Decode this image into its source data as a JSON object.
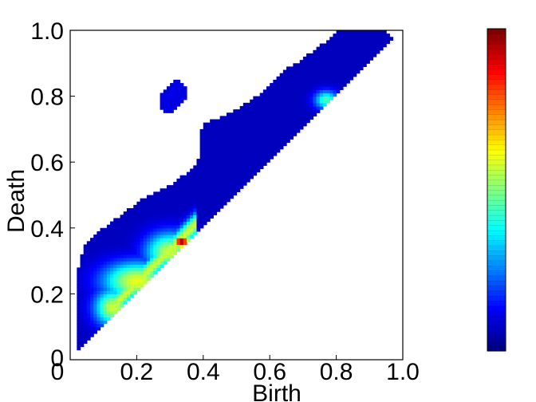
{
  "chart_data": {
    "type": "heatmap",
    "title": "",
    "xlabel": "Birth",
    "ylabel": "Death",
    "xlim": [
      0,
      1.0
    ],
    "ylim": [
      0,
      1.0
    ],
    "x_ticks": [
      "0",
      "0.2",
      "0.4",
      "0.6",
      "0.8",
      "1.0"
    ],
    "y_ticks": [
      "0",
      "0.2",
      "0.4",
      "0.6",
      "0.8",
      "1.0"
    ],
    "x_tick_values": [
      0,
      0.2,
      0.4,
      0.6,
      0.8,
      1.0
    ],
    "y_tick_values": [
      0,
      0.2,
      0.4,
      0.6,
      0.8,
      1.0
    ],
    "colormap": "jet",
    "colorbar": true,
    "grid": false,
    "support_region": [
      [
        0.02,
        0.03
      ],
      [
        0.02,
        0.26
      ],
      [
        0.03,
        0.3
      ],
      [
        0.04,
        0.34
      ],
      [
        0.06,
        0.37
      ],
      [
        0.1,
        0.4
      ],
      [
        0.14,
        0.43
      ],
      [
        0.18,
        0.46
      ],
      [
        0.22,
        0.49
      ],
      [
        0.26,
        0.51
      ],
      [
        0.3,
        0.53
      ],
      [
        0.34,
        0.56
      ],
      [
        0.38,
        0.59
      ],
      [
        0.39,
        0.62
      ],
      [
        0.39,
        0.67
      ],
      [
        0.4,
        0.72
      ],
      [
        0.44,
        0.73
      ],
      [
        0.5,
        0.76
      ],
      [
        0.56,
        0.8
      ],
      [
        0.6,
        0.84
      ],
      [
        0.64,
        0.88
      ],
      [
        0.68,
        0.9
      ],
      [
        0.72,
        0.93
      ],
      [
        0.76,
        0.96
      ],
      [
        0.8,
        1.0
      ],
      [
        0.94,
        1.0
      ],
      [
        0.97,
        0.98
      ],
      [
        0.03,
        0.03
      ]
    ],
    "islands": [
      {
        "name": "island-upper-left",
        "points": [
          [
            0.27,
            0.8
          ],
          [
            0.29,
            0.83
          ],
          [
            0.32,
            0.85
          ],
          [
            0.35,
            0.83
          ],
          [
            0.35,
            0.8
          ],
          [
            0.32,
            0.77
          ],
          [
            0.3,
            0.75
          ],
          [
            0.27,
            0.76
          ]
        ]
      }
    ],
    "density_peaks": [
      {
        "x": 0.335,
        "y": 0.36,
        "value": 1.0,
        "sx": 0.018,
        "sy": 0.014
      },
      {
        "x": 0.3,
        "y": 0.33,
        "value": 0.55,
        "sx": 0.05,
        "sy": 0.04
      },
      {
        "x": 0.2,
        "y": 0.24,
        "value": 0.58,
        "sx": 0.07,
        "sy": 0.04
      },
      {
        "x": 0.13,
        "y": 0.16,
        "value": 0.55,
        "sx": 0.04,
        "sy": 0.04
      },
      {
        "x": 0.77,
        "y": 0.79,
        "value": 0.42,
        "sx": 0.025,
        "sy": 0.02
      }
    ]
  }
}
